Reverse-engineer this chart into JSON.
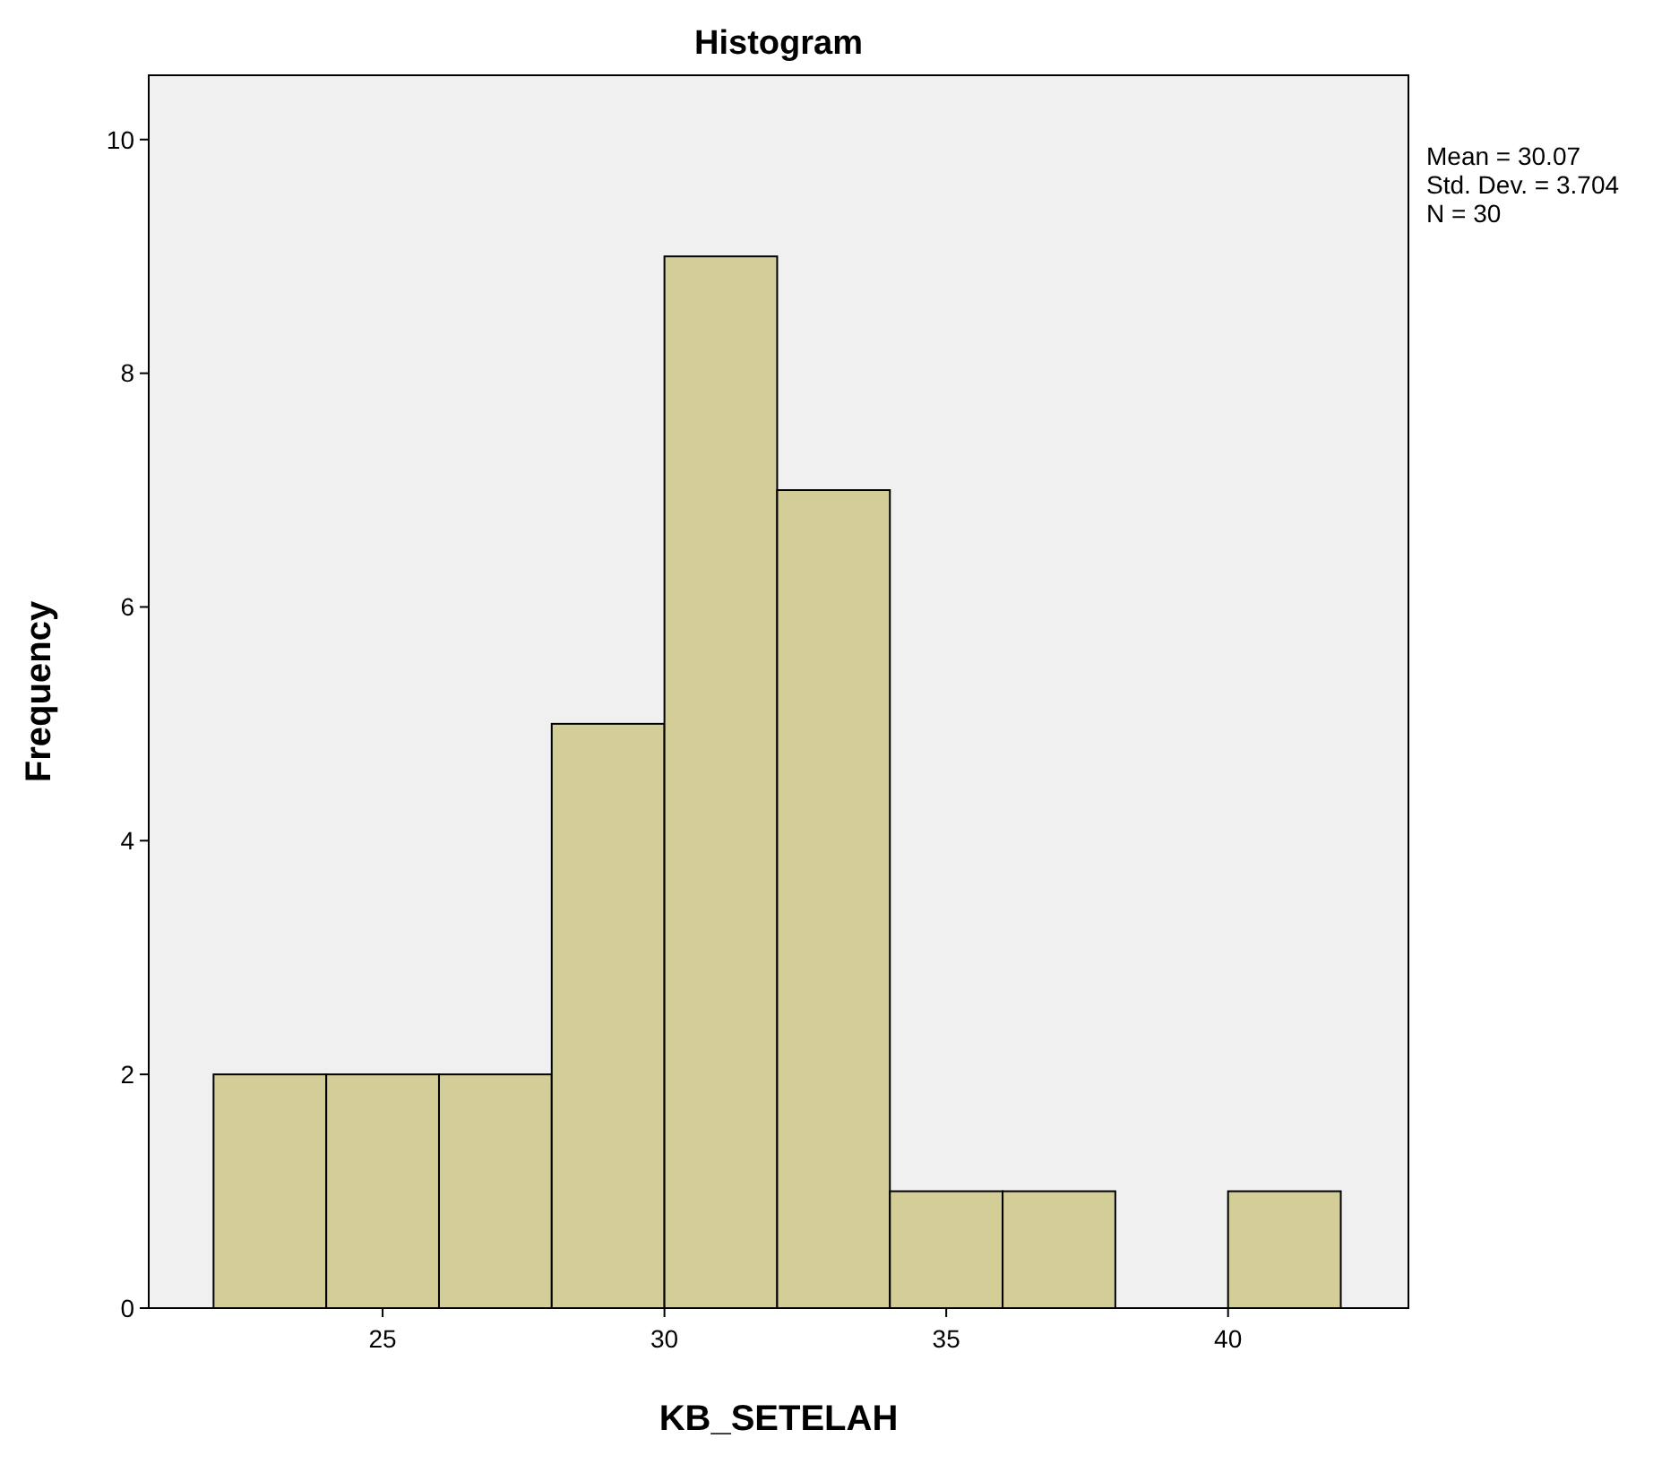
{
  "chart_data": {
    "type": "histogram",
    "title": "Histogram",
    "xlabel": "KB_SETELAH",
    "ylabel": "Frequency",
    "bins": [
      22,
      24,
      26,
      28,
      30,
      32,
      34,
      36,
      38,
      40,
      42
    ],
    "values": [
      2,
      2,
      2,
      5,
      9,
      7,
      1,
      1,
      0,
      1
    ],
    "color": "#d3ce97",
    "xlim": [
      20.85,
      43.2
    ],
    "xticks": [
      25,
      30,
      35,
      40
    ],
    "ylim": [
      0,
      10.55
    ],
    "yticks": [
      0,
      2,
      4,
      6,
      8,
      10
    ],
    "grid": false,
    "annotations": [
      "Mean = 30.07",
      "Std. Dev. = 3.704",
      "N = 30"
    ]
  }
}
